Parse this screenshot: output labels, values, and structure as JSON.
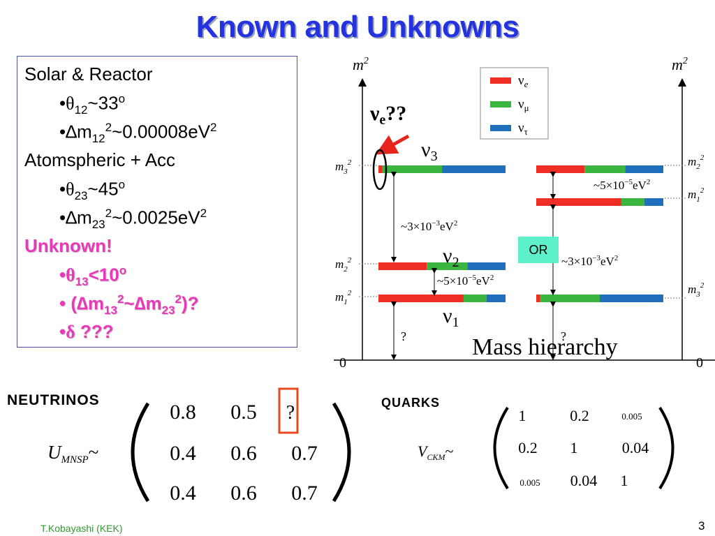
{
  "title": "Known and Unknowns",
  "params": {
    "solar_heading": "Solar & Reactor",
    "theta12": {
      "sym": "θ",
      "sub": "12",
      "rel": "~33",
      "sup": "o"
    },
    "dm12": {
      "sym": "∆m",
      "sub": "12",
      "sup": "2",
      "rel": "~0.00008eV",
      "sup2": "2"
    },
    "atm_heading": "Atomspheric + Acc",
    "theta23": {
      "sym": "θ",
      "sub": "23",
      "rel": "~45",
      "sup": "o"
    },
    "dm23": {
      "sym": "∆m",
      "sub": "23",
      "sup": "2",
      "rel": "~0.0025eV",
      "sup2": "2"
    },
    "unknown_heading": "Unknown!",
    "theta13": {
      "sym": "θ",
      "sub": "13",
      "rel": "<10",
      "sup": "o"
    },
    "dm13": {
      "open": "(∆m",
      "sub1": "13",
      "sup1": "2",
      "mid": "~∆m",
      "sub2": "23",
      "sup2": "2",
      "close": ")?"
    },
    "delta": {
      "sym": "δ",
      "rel": " ???"
    }
  },
  "diagram": {
    "axis_label": "m",
    "axis_label_sup": "2",
    "zero": "0",
    "legend": [
      {
        "name": "ν",
        "sub": "e",
        "color": "#ee2e24"
      },
      {
        "name": "ν",
        "sub": "μ",
        "color": "#3cb440"
      },
      {
        "name": "ν",
        "sub": "τ",
        "color": "#1f6fba"
      }
    ],
    "annotation_nu_e": {
      "name": "ν",
      "sub": "e",
      "rel": "??"
    },
    "nu3": {
      "name": "ν",
      "sub": "3"
    },
    "nu2": {
      "name": "ν",
      "sub": "2"
    },
    "nu1": {
      "name": "ν",
      "sub": "1"
    },
    "left_labels": {
      "m3": {
        "name": "m",
        "sub": "3",
        "sup": "2"
      },
      "m2": {
        "name": "m",
        "sub": "2",
        "sup": "2"
      },
      "m1": {
        "name": "m",
        "sub": "1",
        "sup": "2"
      }
    },
    "right_labels": {
      "m2": {
        "name": "m",
        "sub": "2",
        "sup": "2"
      },
      "m1": {
        "name": "m",
        "sub": "1",
        "sup": "2"
      },
      "m3": {
        "name": "m",
        "sub": "3",
        "sup": "2"
      }
    },
    "gap_labels": {
      "left_big": {
        "text": "~3×10",
        "exp": "−3",
        "unit": "eV",
        "unit_sup": "2"
      },
      "left_small": {
        "text": "~5×10",
        "exp": "−5",
        "unit": "eV",
        "unit_sup": "2"
      },
      "right_small": {
        "text": "~5×10",
        "exp": "−5",
        "unit": "eV",
        "unit_sup": "2"
      },
      "right_big": {
        "text": "~3×10",
        "exp": "−3",
        "unit": "eV",
        "unit_sup": "2"
      }
    },
    "question": "?",
    "or_label": "OR",
    "mass_hierarchy": "Mass hierarchy",
    "flavor_fractions": {
      "left_nu3": [
        0.03,
        0.47,
        0.5
      ],
      "left_nu2": [
        0.38,
        0.32,
        0.3
      ],
      "left_nu1": [
        0.67,
        0.18,
        0.15
      ],
      "right_top": [
        0.38,
        0.32,
        0.3
      ],
      "right_mid": [
        0.67,
        0.18,
        0.15
      ],
      "right_bottom": [
        0.03,
        0.47,
        0.5
      ]
    }
  },
  "neutrinos": {
    "heading": "NEUTRINOS",
    "symbol": "U",
    "symbol_sub": "MNSP",
    "tilde": "~",
    "matrix": [
      [
        "0.8",
        "0.5",
        "?"
      ],
      [
        "0.4",
        "0.6",
        "0.7"
      ],
      [
        "0.4",
        "0.6",
        "0.7"
      ]
    ]
  },
  "quarks": {
    "heading": "QUARKS",
    "symbol": "V",
    "symbol_sub": "CKM",
    "tilde": "~",
    "matrix": [
      [
        "1",
        "0.2",
        "0.005"
      ],
      [
        "0.2",
        "1",
        "0.04"
      ],
      [
        "0.005",
        "0.04",
        "1"
      ]
    ]
  },
  "footer": "T.Kobayashi (KEK)",
  "page_number": "3"
}
